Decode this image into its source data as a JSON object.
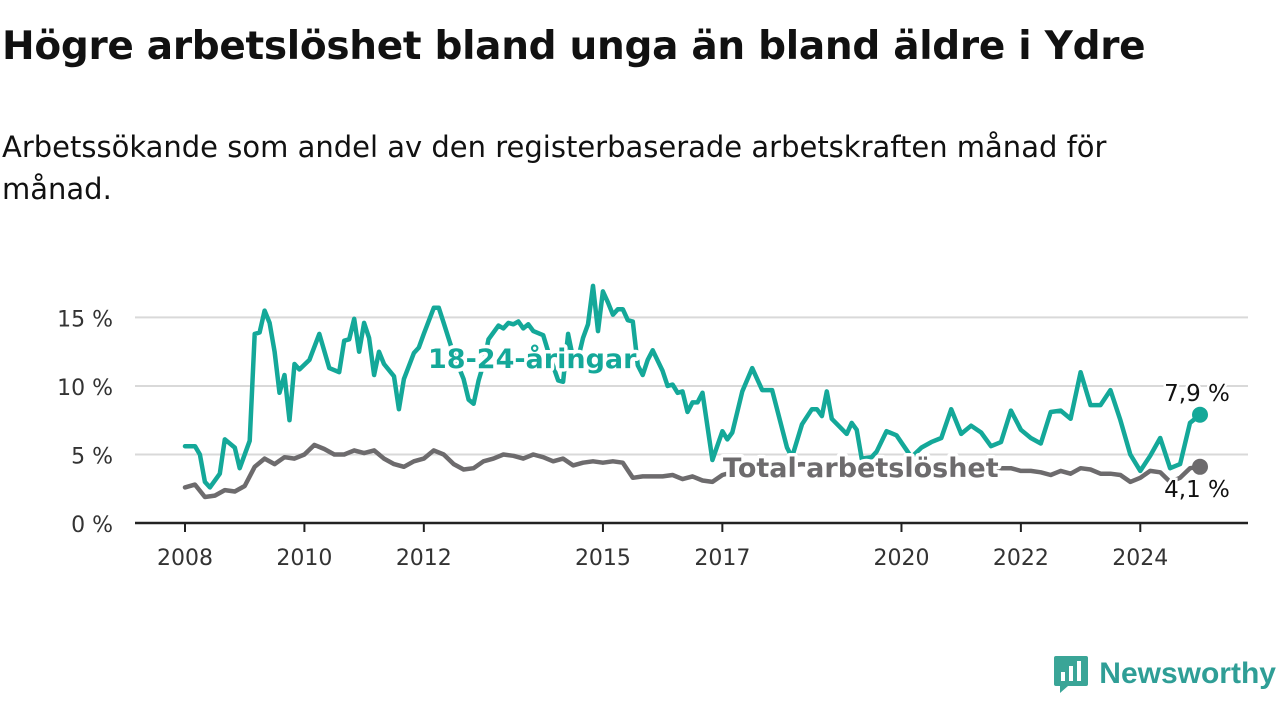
{
  "title": "Högre arbetslöshet bland unga än bland äldre i Ydre",
  "subtitle": "Arbetssökande som andel av den registerbaserade arbetskraften månad för månad.",
  "brand": {
    "name": "Newsworthy",
    "logo_icon": "newsworthy-bar-chart-logo-icon",
    "color": "#3aa597"
  },
  "chart_data": {
    "type": "line",
    "x_unit": "month",
    "x_range": [
      "2008-01",
      "2025-01"
    ],
    "ylim": [
      0,
      17
    ],
    "y_ticks": [
      0,
      5,
      10,
      15
    ],
    "y_tick_labels": [
      "0 %",
      "5 %",
      "10 %",
      "15 %"
    ],
    "x_ticks": [
      2008,
      2010,
      2012,
      2015,
      2017,
      2020,
      2022,
      2024
    ],
    "x_tick_labels": [
      "2008",
      "2010",
      "2012",
      "2015",
      "2017",
      "2020",
      "2022",
      "2024"
    ],
    "grid": true,
    "series": [
      {
        "name": "18-24-åringar",
        "color": "#14a899",
        "end_label": "7,9 %",
        "points": [
          [
            "2008-01",
            5.6
          ],
          [
            "2008-03",
            5.6
          ],
          [
            "2008-04",
            5.0
          ],
          [
            "2008-05",
            3.0
          ],
          [
            "2008-06",
            2.6
          ],
          [
            "2008-08",
            3.6
          ],
          [
            "2008-09",
            6.1
          ],
          [
            "2008-11",
            5.5
          ],
          [
            "2008-12",
            4.0
          ],
          [
            "2009-02",
            6.0
          ],
          [
            "2009-03",
            13.8
          ],
          [
            "2009-04",
            13.9
          ],
          [
            "2009-05",
            15.5
          ],
          [
            "2009-06",
            14.6
          ],
          [
            "2009-07",
            12.5
          ],
          [
            "2009-08",
            9.5
          ],
          [
            "2009-09",
            10.8
          ],
          [
            "2009-10",
            7.5
          ],
          [
            "2009-11",
            11.6
          ],
          [
            "2009-12",
            11.2
          ],
          [
            "2010-02",
            11.9
          ],
          [
            "2010-04",
            13.8
          ],
          [
            "2010-06",
            11.3
          ],
          [
            "2010-08",
            11.0
          ],
          [
            "2010-09",
            13.3
          ],
          [
            "2010-10",
            13.4
          ],
          [
            "2010-11",
            14.9
          ],
          [
            "2010-12",
            12.5
          ],
          [
            "2011-01",
            14.6
          ],
          [
            "2011-02",
            13.5
          ],
          [
            "2011-03",
            10.8
          ],
          [
            "2011-04",
            12.5
          ],
          [
            "2011-05",
            11.6
          ],
          [
            "2011-07",
            10.7
          ],
          [
            "2011-08",
            8.3
          ],
          [
            "2011-09",
            10.5
          ],
          [
            "2011-11",
            12.4
          ],
          [
            "2011-12",
            12.8
          ],
          [
            "2012-01",
            13.8
          ],
          [
            "2012-03",
            15.7
          ],
          [
            "2012-04",
            15.7
          ],
          [
            "2012-05",
            14.6
          ],
          [
            "2012-07",
            12.3
          ],
          [
            "2012-09",
            10.5
          ],
          [
            "2012-10",
            9.0
          ],
          [
            "2012-11",
            8.7
          ],
          [
            "2012-12",
            10.4
          ],
          [
            "2013-01",
            11.6
          ],
          [
            "2013-02",
            13.4
          ],
          [
            "2013-04",
            14.4
          ],
          [
            "2013-05",
            14.2
          ],
          [
            "2013-06",
            14.6
          ],
          [
            "2013-07",
            14.5
          ],
          [
            "2013-08",
            14.7
          ],
          [
            "2013-09",
            14.2
          ],
          [
            "2013-10",
            14.5
          ],
          [
            "2013-11",
            14.0
          ],
          [
            "2014-01",
            13.7
          ],
          [
            "2014-02",
            12.5
          ],
          [
            "2014-04",
            10.4
          ],
          [
            "2014-05",
            10.3
          ],
          [
            "2014-06",
            13.8
          ],
          [
            "2014-07",
            12.0
          ],
          [
            "2014-08",
            12.0
          ],
          [
            "2014-09",
            13.5
          ],
          [
            "2014-10",
            14.5
          ],
          [
            "2014-11",
            17.3
          ],
          [
            "2014-12",
            14.0
          ],
          [
            "2015-01",
            16.9
          ],
          [
            "2015-02",
            16.1
          ],
          [
            "2015-03",
            15.2
          ],
          [
            "2015-04",
            15.6
          ],
          [
            "2015-05",
            15.6
          ],
          [
            "2015-06",
            14.8
          ],
          [
            "2015-07",
            14.7
          ],
          [
            "2015-08",
            11.5
          ],
          [
            "2015-09",
            10.8
          ],
          [
            "2015-10",
            11.9
          ],
          [
            "2015-11",
            12.6
          ],
          [
            "2016-01",
            11.1
          ],
          [
            "2016-02",
            10.0
          ],
          [
            "2016-03",
            10.1
          ],
          [
            "2016-04",
            9.5
          ],
          [
            "2016-05",
            9.6
          ],
          [
            "2016-06",
            8.1
          ],
          [
            "2016-07",
            8.8
          ],
          [
            "2016-08",
            8.8
          ],
          [
            "2016-09",
            9.5
          ],
          [
            "2016-11",
            4.6
          ],
          [
            "2017-01",
            6.7
          ],
          [
            "2017-02",
            6.1
          ],
          [
            "2017-03",
            6.6
          ],
          [
            "2017-05",
            9.6
          ],
          [
            "2017-07",
            11.3
          ],
          [
            "2017-09",
            9.7
          ],
          [
            "2017-10",
            9.7
          ],
          [
            "2017-11",
            9.7
          ],
          [
            "2018-02",
            5.5
          ],
          [
            "2018-03",
            4.8
          ],
          [
            "2018-05",
            7.2
          ],
          [
            "2018-07",
            8.3
          ],
          [
            "2018-08",
            8.3
          ],
          [
            "2018-09",
            7.8
          ],
          [
            "2018-10",
            9.6
          ],
          [
            "2018-11",
            7.6
          ],
          [
            "2019-02",
            6.5
          ],
          [
            "2019-03",
            7.3
          ],
          [
            "2019-04",
            6.8
          ],
          [
            "2019-05",
            4.7
          ],
          [
            "2019-07",
            4.8
          ],
          [
            "2019-08",
            5.2
          ],
          [
            "2019-10",
            6.7
          ],
          [
            "2019-12",
            6.4
          ],
          [
            "2020-03",
            4.8
          ],
          [
            "2020-05",
            5.5
          ],
          [
            "2020-07",
            5.9
          ],
          [
            "2020-09",
            6.2
          ],
          [
            "2020-11",
            8.3
          ],
          [
            "2021-01",
            6.5
          ],
          [
            "2021-03",
            7.1
          ],
          [
            "2021-05",
            6.6
          ],
          [
            "2021-07",
            5.6
          ],
          [
            "2021-09",
            5.9
          ],
          [
            "2021-11",
            8.2
          ],
          [
            "2022-01",
            6.8
          ],
          [
            "2022-03",
            6.2
          ],
          [
            "2022-05",
            5.8
          ],
          [
            "2022-07",
            8.1
          ],
          [
            "2022-09",
            8.2
          ],
          [
            "2022-11",
            7.6
          ],
          [
            "2023-01",
            11.0
          ],
          [
            "2023-03",
            8.6
          ],
          [
            "2023-05",
            8.6
          ],
          [
            "2023-07",
            9.7
          ],
          [
            "2023-09",
            7.5
          ],
          [
            "2023-11",
            5.0
          ],
          [
            "2024-01",
            3.8
          ],
          [
            "2024-03",
            4.9
          ],
          [
            "2024-05",
            6.2
          ],
          [
            "2024-07",
            4.0
          ],
          [
            "2024-09",
            4.3
          ],
          [
            "2024-11",
            7.3
          ],
          [
            "2025-01",
            7.9
          ]
        ]
      },
      {
        "name": "Total arbetslöshet",
        "color": "#6d6b6d",
        "end_label": "4,1 %",
        "points": [
          [
            "2008-01",
            2.6
          ],
          [
            "2008-03",
            2.8
          ],
          [
            "2008-05",
            1.9
          ],
          [
            "2008-07",
            2.0
          ],
          [
            "2008-09",
            2.4
          ],
          [
            "2008-11",
            2.3
          ],
          [
            "2009-01",
            2.7
          ],
          [
            "2009-03",
            4.1
          ],
          [
            "2009-05",
            4.7
          ],
          [
            "2009-07",
            4.3
          ],
          [
            "2009-09",
            4.8
          ],
          [
            "2009-11",
            4.7
          ],
          [
            "2010-01",
            5.0
          ],
          [
            "2010-03",
            5.7
          ],
          [
            "2010-05",
            5.4
          ],
          [
            "2010-07",
            5.0
          ],
          [
            "2010-09",
            5.0
          ],
          [
            "2010-11",
            5.3
          ],
          [
            "2011-01",
            5.1
          ],
          [
            "2011-03",
            5.3
          ],
          [
            "2011-05",
            4.7
          ],
          [
            "2011-07",
            4.3
          ],
          [
            "2011-09",
            4.1
          ],
          [
            "2011-11",
            4.5
          ],
          [
            "2012-01",
            4.7
          ],
          [
            "2012-03",
            5.3
          ],
          [
            "2012-05",
            5.0
          ],
          [
            "2012-07",
            4.3
          ],
          [
            "2012-09",
            3.9
          ],
          [
            "2012-11",
            4.0
          ],
          [
            "2013-01",
            4.5
          ],
          [
            "2013-03",
            4.7
          ],
          [
            "2013-05",
            5.0
          ],
          [
            "2013-07",
            4.9
          ],
          [
            "2013-09",
            4.7
          ],
          [
            "2013-11",
            5.0
          ],
          [
            "2014-01",
            4.8
          ],
          [
            "2014-03",
            4.5
          ],
          [
            "2014-05",
            4.7
          ],
          [
            "2014-07",
            4.2
          ],
          [
            "2014-09",
            4.4
          ],
          [
            "2014-11",
            4.5
          ],
          [
            "2015-01",
            4.4
          ],
          [
            "2015-03",
            4.5
          ],
          [
            "2015-05",
            4.4
          ],
          [
            "2015-07",
            3.3
          ],
          [
            "2015-09",
            3.4
          ],
          [
            "2015-11",
            3.4
          ],
          [
            "2016-01",
            3.4
          ],
          [
            "2016-03",
            3.5
          ],
          [
            "2016-05",
            3.2
          ],
          [
            "2016-07",
            3.4
          ],
          [
            "2016-09",
            3.1
          ],
          [
            "2016-11",
            3.0
          ],
          [
            "2017-01",
            3.5
          ],
          [
            "2017-03",
            3.7
          ],
          [
            "2017-05",
            4.2
          ],
          [
            "2017-07",
            4.1
          ],
          [
            "2017-09",
            4.2
          ],
          [
            "2017-11",
            4.3
          ],
          [
            "2018-01",
            4.3
          ],
          [
            "2018-03",
            4.2
          ],
          [
            "2018-05",
            4.3
          ],
          [
            "2018-07",
            4.2
          ],
          [
            "2018-09",
            4.1
          ],
          [
            "2018-11",
            4.2
          ],
          [
            "2019-01",
            4.2
          ],
          [
            "2019-03",
            4.1
          ],
          [
            "2019-05",
            4.2
          ],
          [
            "2019-07",
            4.1
          ],
          [
            "2019-09",
            4.1
          ],
          [
            "2019-11",
            4.2
          ],
          [
            "2020-01",
            4.2
          ],
          [
            "2020-03",
            4.3
          ],
          [
            "2020-05",
            4.2
          ],
          [
            "2020-07",
            4.2
          ],
          [
            "2020-09",
            4.3
          ],
          [
            "2020-11",
            4.2
          ],
          [
            "2021-01",
            4.2
          ],
          [
            "2021-03",
            4.3
          ],
          [
            "2021-05",
            4.1
          ],
          [
            "2021-07",
            4.1
          ],
          [
            "2021-09",
            4.0
          ],
          [
            "2021-11",
            4.0
          ],
          [
            "2022-01",
            3.8
          ],
          [
            "2022-03",
            3.8
          ],
          [
            "2022-05",
            3.7
          ],
          [
            "2022-07",
            3.5
          ],
          [
            "2022-09",
            3.8
          ],
          [
            "2022-11",
            3.6
          ],
          [
            "2023-01",
            4.0
          ],
          [
            "2023-03",
            3.9
          ],
          [
            "2023-05",
            3.6
          ],
          [
            "2023-07",
            3.6
          ],
          [
            "2023-09",
            3.5
          ],
          [
            "2023-11",
            3.0
          ],
          [
            "2024-01",
            3.3
          ],
          [
            "2024-03",
            3.8
          ],
          [
            "2024-05",
            3.7
          ],
          [
            "2024-07",
            3.0
          ],
          [
            "2024-09",
            3.3
          ],
          [
            "2024-11",
            4.0
          ],
          [
            "2025-01",
            4.1
          ]
        ]
      }
    ]
  }
}
